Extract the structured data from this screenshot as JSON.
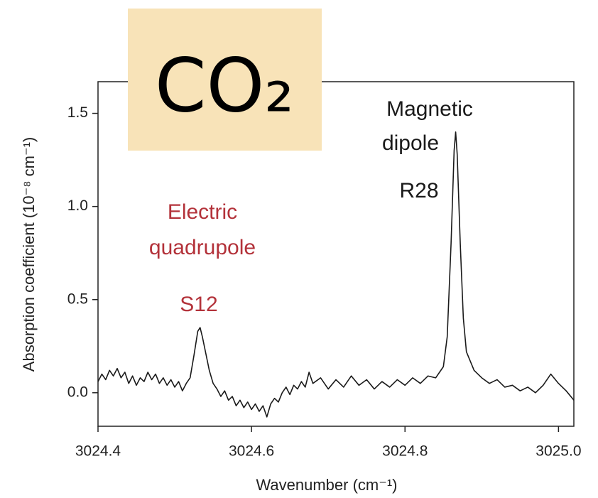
{
  "chart_data": {
    "type": "line",
    "title": "CO₂",
    "xlabel": "Wavenumber (cm⁻¹)",
    "ylabel": "Absorption coefficient (10⁻⁸ cm⁻¹)",
    "color": "#1a1a1a",
    "xlim": [
      3024.4,
      3025.02
    ],
    "ylim": [
      -0.18,
      1.67
    ],
    "xticks": [
      3024.4,
      3024.6,
      3024.8,
      {
        "value": 3025,
        "label": "3025.0"
      }
    ],
    "yticks": [
      {
        "value": 0,
        "label": "0.0"
      },
      0.5,
      {
        "value": 1,
        "label": "1.0"
      },
      1.5
    ],
    "annotations": [
      {
        "text": "Electric",
        "color": "#b3323a"
      },
      {
        "text": "quadrupole",
        "color": "#b3323a"
      },
      {
        "text": "S12",
        "color": "#b3323a"
      },
      {
        "text": "Magnetic",
        "color": "#1a1a1a"
      },
      {
        "text": "dipole",
        "color": "#1a1a1a"
      },
      {
        "text": "R28",
        "color": "#1a1a1a"
      }
    ],
    "x": [
      3024.4,
      3024.405,
      3024.41,
      3024.415,
      3024.42,
      3024.425,
      3024.43,
      3024.435,
      3024.44,
      3024.445,
      3024.45,
      3024.455,
      3024.46,
      3024.465,
      3024.47,
      3024.475,
      3024.48,
      3024.485,
      3024.49,
      3024.495,
      3024.5,
      3024.505,
      3024.51,
      3024.515,
      3024.52,
      3024.525,
      3024.53,
      3024.533,
      3024.536,
      3024.54,
      3024.545,
      3024.55,
      3024.555,
      3024.56,
      3024.565,
      3024.57,
      3024.575,
      3024.58,
      3024.585,
      3024.59,
      3024.595,
      3024.6,
      3024.605,
      3024.61,
      3024.615,
      3024.62,
      3024.625,
      3024.63,
      3024.635,
      3024.64,
      3024.645,
      3024.65,
      3024.655,
      3024.66,
      3024.665,
      3024.67,
      3024.675,
      3024.68,
      3024.69,
      3024.7,
      3024.71,
      3024.72,
      3024.73,
      3024.74,
      3024.75,
      3024.76,
      3024.77,
      3024.78,
      3024.79,
      3024.8,
      3024.81,
      3024.82,
      3024.83,
      3024.84,
      3024.85,
      3024.855,
      3024.86,
      3024.864,
      3024.866,
      3024.868,
      3024.872,
      3024.876,
      3024.88,
      3024.89,
      3024.9,
      3024.91,
      3024.92,
      3024.93,
      3024.94,
      3024.95,
      3024.96,
      3024.97,
      3024.98,
      3024.99,
      3025.0,
      3025.01,
      3025.02
    ],
    "values": [
      0.06,
      0.1,
      0.07,
      0.12,
      0.09,
      0.13,
      0.08,
      0.11,
      0.05,
      0.09,
      0.04,
      0.08,
      0.06,
      0.11,
      0.07,
      0.1,
      0.05,
      0.08,
      0.04,
      0.07,
      0.03,
      0.06,
      0.01,
      0.05,
      0.08,
      0.2,
      0.33,
      0.35,
      0.3,
      0.22,
      0.12,
      0.05,
      0.02,
      -0.02,
      0.01,
      -0.04,
      -0.02,
      -0.07,
      -0.04,
      -0.08,
      -0.05,
      -0.09,
      -0.06,
      -0.1,
      -0.07,
      -0.13,
      -0.06,
      -0.03,
      -0.05,
      0.0,
      0.03,
      -0.01,
      0.04,
      0.02,
      0.06,
      0.03,
      0.11,
      0.05,
      0.08,
      0.02,
      0.07,
      0.03,
      0.09,
      0.04,
      0.07,
      0.02,
      0.06,
      0.03,
      0.07,
      0.04,
      0.08,
      0.05,
      0.09,
      0.08,
      0.14,
      0.3,
      0.8,
      1.3,
      1.4,
      1.28,
      0.8,
      0.4,
      0.22,
      0.12,
      0.08,
      0.05,
      0.07,
      0.03,
      0.04,
      0.01,
      0.03,
      0.0,
      0.04,
      0.1,
      0.05,
      0.01,
      -0.04
    ]
  }
}
